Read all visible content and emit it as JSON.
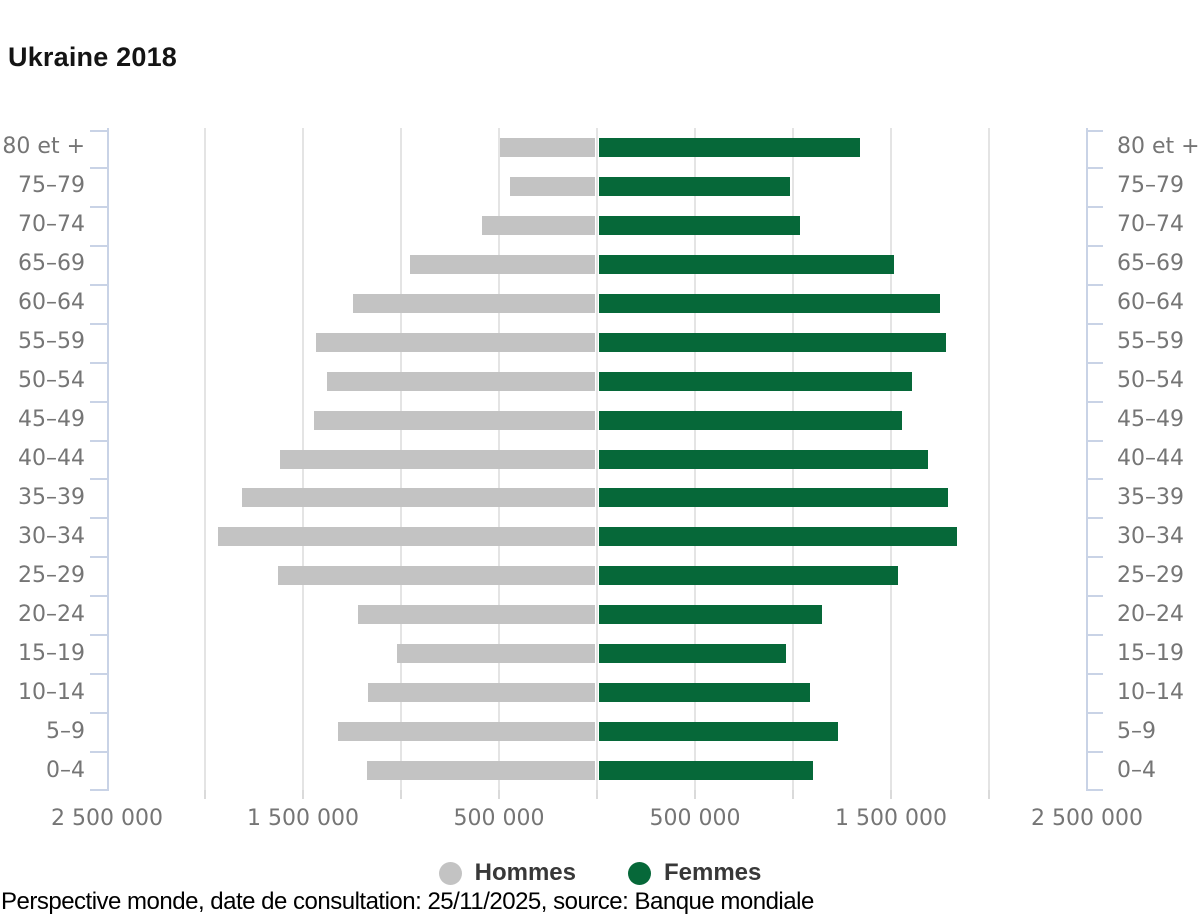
{
  "title": "Ukraine 2018",
  "footer": "Perspective monde, date de consultation: 25/11/2025, source: Banque mondiale",
  "colors": {
    "bar_men": "#c3c3c3",
    "bar_women": "#066839",
    "axis": "#c9d3e6",
    "grid": "#e4e4e4",
    "label": "#757575"
  },
  "chart_data": {
    "type": "bar",
    "subtype": "population-pyramid",
    "title": "Ukraine 2018",
    "categories": [
      "80 et +",
      "75–79",
      "70–74",
      "65–69",
      "60–64",
      "55–59",
      "50–54",
      "45–49",
      "40–44",
      "35–39",
      "30–34",
      "25–29",
      "20–24",
      "15–19",
      "10–14",
      "5–9",
      "0–4"
    ],
    "series": [
      {
        "name": "Hommes",
        "color": "#c3c3c3",
        "side": "left",
        "values": [
          495000,
          444000,
          587000,
          954000,
          1245000,
          1434000,
          1378000,
          1444000,
          1617000,
          1811000,
          1934000,
          1628000,
          1219000,
          1020000,
          1168000,
          1321000,
          1173000
        ]
      },
      {
        "name": "Femmes",
        "color": "#066839",
        "side": "right",
        "values": [
          1342000,
          985000,
          1036000,
          1515000,
          1750000,
          1781000,
          1607000,
          1556000,
          1689000,
          1791000,
          1837000,
          1536000,
          1148000,
          964000,
          1087000,
          1230000,
          1102000
        ]
      }
    ],
    "x_tick_labels": [
      "2 500 000",
      "1 500 000",
      "500 000",
      "500 000",
      "1 500 000",
      "2 500 000"
    ],
    "axis_max": 2500000,
    "grid_step": 500000,
    "grid": true,
    "legend_position": "bottom"
  }
}
